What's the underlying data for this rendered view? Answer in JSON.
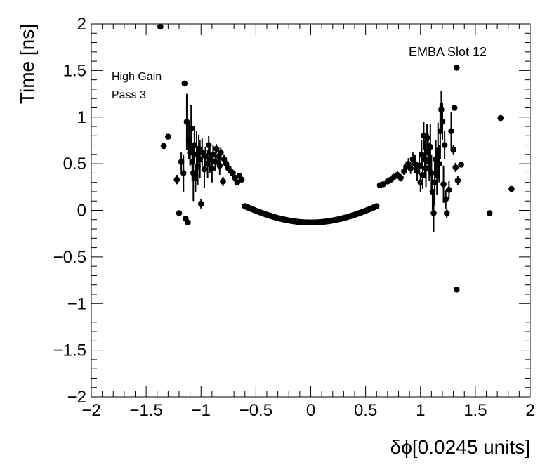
{
  "chart_data": {
    "type": "scatter",
    "title": "",
    "xlabel": "δϕ[0.0245 units]",
    "ylabel": "Time [ns]",
    "xlim": [
      -2,
      2
    ],
    "ylim": [
      -2,
      2
    ],
    "x_ticks": [
      -2,
      -1.5,
      -1,
      -0.5,
      0,
      0.5,
      1,
      1.5,
      2
    ],
    "y_ticks": [
      -2,
      -1.5,
      -1,
      -0.5,
      0,
      0.5,
      1,
      1.5,
      2
    ],
    "x_tick_labels": [
      "−2",
      "−1.5",
      "−1",
      "−0.5",
      "0",
      "0.5",
      "1",
      "1.5",
      "2"
    ],
    "y_tick_labels": [
      "−2",
      "−1.5",
      "−1",
      "−0.5",
      "0",
      "0.5",
      "1",
      "1.5",
      "2"
    ],
    "annotations": {
      "gain": "High Gain",
      "pass": "Pass 3",
      "module": "EMBA Slot 12"
    },
    "marker_color": "#000000",
    "curve_function": "y = -0.13 + 0.55*x^2 - 0.18*x^4 (x in [-0.6,0.6])",
    "points": [
      {
        "x": -1.37,
        "y": 1.97,
        "e": 0
      },
      {
        "x": -1.34,
        "y": 0.69,
        "e": 0
      },
      {
        "x": -1.3,
        "y": 0.79,
        "e": 0
      },
      {
        "x": -1.22,
        "y": 0.33,
        "e": 0.05
      },
      {
        "x": -1.2,
        "y": -0.03,
        "e": 0
      },
      {
        "x": -1.18,
        "y": 0.52,
        "e": 0.1
      },
      {
        "x": -1.16,
        "y": 0.4,
        "e": 0.2
      },
      {
        "x": -1.15,
        "y": 1.36,
        "e": 0
      },
      {
        "x": -1.14,
        "y": -0.09,
        "e": 0
      },
      {
        "x": -1.13,
        "y": 0.95,
        "e": 0.3
      },
      {
        "x": -1.12,
        "y": -0.13,
        "e": 0
      },
      {
        "x": -1.11,
        "y": 0.75,
        "e": 0.2
      },
      {
        "x": -1.1,
        "y": 0.62,
        "e": 0.15
      },
      {
        "x": -1.09,
        "y": 0.88,
        "e": 0.25
      },
      {
        "x": -1.08,
        "y": 0.52,
        "e": 0.2
      },
      {
        "x": -1.07,
        "y": 0.4,
        "e": 0.3
      },
      {
        "x": -1.06,
        "y": 0.7,
        "e": 0.2
      },
      {
        "x": -1.05,
        "y": 0.35,
        "e": 0.15
      },
      {
        "x": -1.04,
        "y": 0.6,
        "e": 0.25
      },
      {
        "x": -1.03,
        "y": 0.47,
        "e": 0.2
      },
      {
        "x": -1.02,
        "y": 0.66,
        "e": 0.15
      },
      {
        "x": -1.01,
        "y": 0.55,
        "e": 0.2
      },
      {
        "x": -1.0,
        "y": 0.07,
        "e": 0.05
      },
      {
        "x": -0.99,
        "y": 0.62,
        "e": 0.15
      },
      {
        "x": -0.97,
        "y": 0.44,
        "e": 0.2
      },
      {
        "x": -0.96,
        "y": 0.58,
        "e": 0.1
      },
      {
        "x": -0.94,
        "y": 0.5,
        "e": 0.15
      },
      {
        "x": -0.93,
        "y": 0.7,
        "e": 0.1
      },
      {
        "x": -0.92,
        "y": 0.55,
        "e": 0.15
      },
      {
        "x": -0.9,
        "y": 0.45,
        "e": 0.15
      },
      {
        "x": -0.89,
        "y": 0.6,
        "e": 0.1
      },
      {
        "x": -0.87,
        "y": 0.52,
        "e": 0.1
      },
      {
        "x": -0.86,
        "y": 0.66,
        "e": 0.05
      },
      {
        "x": -0.84,
        "y": 0.58,
        "e": 0.1
      },
      {
        "x": -0.83,
        "y": 0.48,
        "e": 0.1
      },
      {
        "x": -0.82,
        "y": 0.62,
        "e": 0.05
      },
      {
        "x": -0.8,
        "y": 0.31,
        "e": 0.05
      },
      {
        "x": -0.79,
        "y": 0.55,
        "e": 0.05
      },
      {
        "x": -0.77,
        "y": 0.5,
        "e": 0.05
      },
      {
        "x": -0.75,
        "y": 0.45,
        "e": 0.05
      },
      {
        "x": -0.73,
        "y": 0.42,
        "e": 0.05
      },
      {
        "x": -0.71,
        "y": 0.4,
        "e": 0.03
      },
      {
        "x": -0.69,
        "y": 0.35,
        "e": 0.03
      },
      {
        "x": -0.67,
        "y": 0.3,
        "e": 0.03
      },
      {
        "x": -0.65,
        "y": 0.37,
        "e": 0.02
      },
      {
        "x": -0.63,
        "y": 0.33,
        "e": 0.02
      },
      {
        "x": 0.63,
        "y": 0.27,
        "e": 0.02
      },
      {
        "x": 0.66,
        "y": 0.28,
        "e": 0.02
      },
      {
        "x": 0.7,
        "y": 0.31,
        "e": 0.03
      },
      {
        "x": 0.73,
        "y": 0.33,
        "e": 0.03
      },
      {
        "x": 0.76,
        "y": 0.36,
        "e": 0.03
      },
      {
        "x": 0.79,
        "y": 0.38,
        "e": 0.04
      },
      {
        "x": 0.82,
        "y": 0.35,
        "e": 0.04
      },
      {
        "x": 0.85,
        "y": 0.42,
        "e": 0.04
      },
      {
        "x": 0.87,
        "y": 0.47,
        "e": 0.05
      },
      {
        "x": 0.89,
        "y": 0.5,
        "e": 0.06
      },
      {
        "x": 0.91,
        "y": 0.45,
        "e": 0.06
      },
      {
        "x": 0.93,
        "y": 0.55,
        "e": 0.07
      },
      {
        "x": 0.95,
        "y": 0.5,
        "e": 0.1
      },
      {
        "x": 0.97,
        "y": 0.42,
        "e": 0.1
      },
      {
        "x": 0.99,
        "y": 0.48,
        "e": 0.1
      },
      {
        "x": 1.0,
        "y": 0.3,
        "e": 0.1
      },
      {
        "x": 1.01,
        "y": 0.6,
        "e": 0.15
      },
      {
        "x": 1.02,
        "y": 0.38,
        "e": 0.15
      },
      {
        "x": 1.03,
        "y": 0.8,
        "e": 0.15
      },
      {
        "x": 1.04,
        "y": 0.55,
        "e": 0.2
      },
      {
        "x": 1.05,
        "y": 0.45,
        "e": 0.2
      },
      {
        "x": 1.06,
        "y": 0.78,
        "e": 0.15
      },
      {
        "x": 1.07,
        "y": 0.62,
        "e": 0.2
      },
      {
        "x": 1.08,
        "y": 0.52,
        "e": 0.2
      },
      {
        "x": 1.09,
        "y": 0.68,
        "e": 0.25
      },
      {
        "x": 1.1,
        "y": 0.4,
        "e": 0.2
      },
      {
        "x": 1.11,
        "y": 0.2,
        "e": 0.2
      },
      {
        "x": 1.12,
        "y": -0.03,
        "e": 0.2
      },
      {
        "x": 1.13,
        "y": 0.3,
        "e": 0.25
      },
      {
        "x": 1.14,
        "y": 0.55,
        "e": 0.2
      },
      {
        "x": 1.15,
        "y": 0.42,
        "e": 0.25
      },
      {
        "x": 1.16,
        "y": 0.64,
        "e": 0.3
      },
      {
        "x": 1.17,
        "y": 0.5,
        "e": 0.2
      },
      {
        "x": 1.18,
        "y": 0.85,
        "e": 0.3
      },
      {
        "x": 1.19,
        "y": 1.08,
        "e": 0.2
      },
      {
        "x": 1.2,
        "y": 0.95,
        "e": 0.2
      },
      {
        "x": 1.21,
        "y": 0.28,
        "e": 0.2
      },
      {
        "x": 1.22,
        "y": 0.7,
        "e": 0.15
      },
      {
        "x": 1.23,
        "y": 0.12,
        "e": 0.1
      },
      {
        "x": 1.24,
        "y": -0.03,
        "e": 0.05
      },
      {
        "x": 1.26,
        "y": 0.22,
        "e": 0.1
      },
      {
        "x": 1.28,
        "y": 0.85,
        "e": 0.2
      },
      {
        "x": 1.3,
        "y": 0.65,
        "e": 0.05
      },
      {
        "x": 1.31,
        "y": 1.1,
        "e": 0
      },
      {
        "x": 1.32,
        "y": 0.46,
        "e": 0.05
      },
      {
        "x": 1.33,
        "y": 1.53,
        "e": 0
      },
      {
        "x": 1.33,
        "y": -0.85,
        "e": 0
      },
      {
        "x": 1.34,
        "y": 0.32,
        "e": 0.05
      },
      {
        "x": 1.37,
        "y": 0.49,
        "e": 0
      },
      {
        "x": 1.63,
        "y": -0.03,
        "e": 0
      },
      {
        "x": 1.73,
        "y": 0.99,
        "e": 0
      },
      {
        "x": 1.83,
        "y": 0.23,
        "e": 0
      }
    ]
  }
}
